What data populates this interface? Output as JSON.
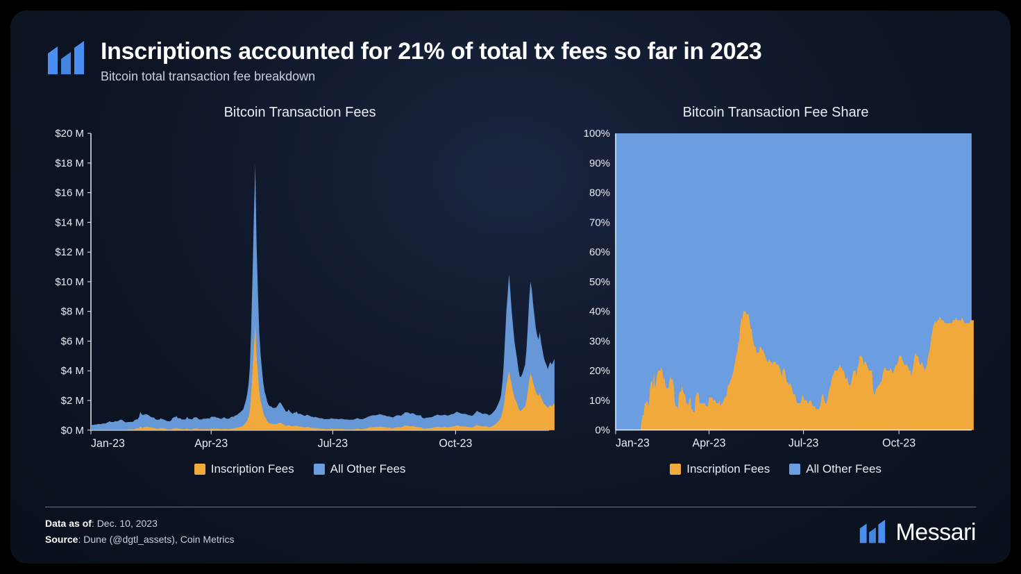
{
  "colors": {
    "inscription": "#f2a93b",
    "other": "#6b9ee0",
    "axis": "#e8ecf4",
    "bg_frame": "#0d1525",
    "logo": "#4a8ff0"
  },
  "header": {
    "title": "Inscriptions accounted for 21% of total tx fees so far in 2023",
    "subtitle": "Bitcoin total transaction fee breakdown"
  },
  "chart1": {
    "title": "Bitcoin Transaction Fees",
    "type": "stacked-area",
    "y": {
      "min": 0,
      "max": 20,
      "step": 2,
      "prefix": "$",
      "suffix": " M"
    },
    "x": {
      "ticks": [
        0,
        90,
        181,
        273
      ],
      "labels": [
        "Jan-23",
        "Apr-23",
        "Jul-23",
        "Oct-23"
      ],
      "max": 343
    },
    "series": {
      "inscription": [
        0,
        0,
        0,
        0,
        0,
        0,
        0,
        0,
        0,
        0,
        0,
        0,
        0,
        0,
        0,
        0,
        0,
        0,
        0,
        0,
        0,
        0,
        0,
        0,
        0,
        0.02,
        0.03,
        0.03,
        0.05,
        0.05,
        0.06,
        0.05,
        0.05,
        0.1,
        0.12,
        0.13,
        0.13,
        0.24,
        0.15,
        0.17,
        0.2,
        0.22,
        0.22,
        0.21,
        0.2,
        0.18,
        0.15,
        0.16,
        0.12,
        0.1,
        0.1,
        0.1,
        0.14,
        0.14,
        0.13,
        0.12,
        0.1,
        0.06,
        0.05,
        0.05,
        0.05,
        0.1,
        0.12,
        0.12,
        0.15,
        0.11,
        0.1,
        0.1,
        0.07,
        0.07,
        0.06,
        0.08,
        0.1,
        0.06,
        0.06,
        0.05,
        0.05,
        0.1,
        0.11,
        0.12,
        0.1,
        0.07,
        0.07,
        0.07,
        0.07,
        0.07,
        0.07,
        0.07,
        0.07,
        0.07,
        0.1,
        0.1,
        0.1,
        0.1,
        0.09,
        0.09,
        0.08,
        0.07,
        0.07,
        0.08,
        0.09,
        0.07,
        0.07,
        0.07,
        0.08,
        0.1,
        0.1,
        0.11,
        0.15,
        0.15,
        0.18,
        0.2,
        0.22,
        0.25,
        0.3,
        0.4,
        0.5,
        0.65,
        0.9,
        1.3,
        2.5,
        4.0,
        5.5,
        7.2,
        5.0,
        3.8,
        2.6,
        2.0,
        1.6,
        1.2,
        0.9,
        0.8,
        0.6,
        0.5,
        0.45,
        0.45,
        0.4,
        0.4,
        0.4,
        0.4,
        0.45,
        0.5,
        0.5,
        0.45,
        0.4,
        0.35,
        0.3,
        0.3,
        0.35,
        0.3,
        0.28,
        0.25,
        0.28,
        0.28,
        0.3,
        0.25,
        0.25,
        0.25,
        0.22,
        0.2,
        0.18,
        0.2,
        0.22,
        0.2,
        0.18,
        0.15,
        0.15,
        0.13,
        0.15,
        0.13,
        0.12,
        0.1,
        0.1,
        0.1,
        0.08,
        0.07,
        0.07,
        0.07,
        0.07,
        0.08,
        0.1,
        0.09,
        0.08,
        0.08,
        0.08,
        0.07,
        0.07,
        0.08,
        0.08,
        0.07,
        0.06,
        0.06,
        0.06,
        0.05,
        0.05,
        0.05,
        0.05,
        0.06,
        0.08,
        0.1,
        0.1,
        0.08,
        0.07,
        0.07,
        0.08,
        0.1,
        0.12,
        0.14,
        0.16,
        0.18,
        0.19,
        0.2,
        0.2,
        0.2,
        0.21,
        0.22,
        0.24,
        0.23,
        0.22,
        0.2,
        0.2,
        0.18,
        0.16,
        0.17,
        0.15,
        0.14,
        0.13,
        0.15,
        0.18,
        0.2,
        0.2,
        0.2,
        0.18,
        0.22,
        0.25,
        0.3,
        0.3,
        0.3,
        0.28,
        0.25,
        0.27,
        0.27,
        0.25,
        0.22,
        0.2,
        0.2,
        0.2,
        0.2,
        0.12,
        0.1,
        0.1,
        0.12,
        0.12,
        0.13,
        0.13,
        0.14,
        0.15,
        0.18,
        0.2,
        0.22,
        0.22,
        0.2,
        0.2,
        0.2,
        0.21,
        0.22,
        0.2,
        0.19,
        0.2,
        0.22,
        0.24,
        0.24,
        0.26,
        0.3,
        0.32,
        0.3,
        0.28,
        0.26,
        0.25,
        0.25,
        0.25,
        0.24,
        0.22,
        0.2,
        0.2,
        0.18,
        0.2,
        0.25,
        0.3,
        0.35,
        0.32,
        0.3,
        0.28,
        0.25,
        0.25,
        0.26,
        0.25,
        0.23,
        0.2,
        0.22,
        0.25,
        0.3,
        0.35,
        0.4,
        0.5,
        0.6,
        0.7,
        0.85,
        1.2,
        1.6,
        2.3,
        3.0,
        3.5,
        4.0,
        3.5,
        3.0,
        2.6,
        2.2,
        2.0,
        1.8,
        1.5,
        1.3,
        1.3,
        1.4,
        1.5,
        1.6,
        2.0,
        2.6,
        3.3,
        3.8,
        3.6,
        3.2,
        2.9,
        2.6,
        2.4,
        2.3,
        2.5,
        2.2,
        2.0,
        1.8,
        1.7,
        1.6,
        1.5,
        1.6,
        1.7,
        1.6,
        1.7,
        1.8
      ],
      "other": [
        0.4,
        0.35,
        0.35,
        0.38,
        0.38,
        0.4,
        0.42,
        0.4,
        0.42,
        0.45,
        0.45,
        0.45,
        0.5,
        0.55,
        0.6,
        0.55,
        0.55,
        0.55,
        0.6,
        0.6,
        0.6,
        0.65,
        0.7,
        0.7,
        0.65,
        0.55,
        0.5,
        0.5,
        0.5,
        0.5,
        0.5,
        0.5,
        0.55,
        0.6,
        0.6,
        0.6,
        0.75,
        1.0,
        0.9,
        0.85,
        0.85,
        0.85,
        0.85,
        0.8,
        0.75,
        0.7,
        0.7,
        0.7,
        0.65,
        0.6,
        0.6,
        0.6,
        0.65,
        0.62,
        0.6,
        0.58,
        0.55,
        0.55,
        0.55,
        0.55,
        0.6,
        0.7,
        0.75,
        0.75,
        0.8,
        0.7,
        0.7,
        0.7,
        0.65,
        0.65,
        0.65,
        0.65,
        0.8,
        0.7,
        0.7,
        0.68,
        0.68,
        0.75,
        0.75,
        0.75,
        0.7,
        0.65,
        0.65,
        0.65,
        0.7,
        0.7,
        0.7,
        0.72,
        0.72,
        0.72,
        0.8,
        0.8,
        0.8,
        0.8,
        0.75,
        0.75,
        0.72,
        0.7,
        0.7,
        0.75,
        0.78,
        0.72,
        0.7,
        0.7,
        0.72,
        0.8,
        0.8,
        0.8,
        0.85,
        0.85,
        0.9,
        0.95,
        1.0,
        1.05,
        1.1,
        1.3,
        1.5,
        1.8,
        2.2,
        3.0,
        4.5,
        6.5,
        9.0,
        10.7,
        7.5,
        5.5,
        4.0,
        3.1,
        2.5,
        2.0,
        1.7,
        1.5,
        1.3,
        1.2,
        1.15,
        1.15,
        1.1,
        1.1,
        1.1,
        1.15,
        1.25,
        1.35,
        1.35,
        1.25,
        1.15,
        1.05,
        0.95,
        0.95,
        1.05,
        0.95,
        0.9,
        0.85,
        0.9,
        0.9,
        0.95,
        0.85,
        0.85,
        0.85,
        0.82,
        0.8,
        0.78,
        0.8,
        0.82,
        0.8,
        0.78,
        0.75,
        0.75,
        0.73,
        0.75,
        0.73,
        0.72,
        0.7,
        0.7,
        0.7,
        0.68,
        0.67,
        0.67,
        0.67,
        0.67,
        0.68,
        0.7,
        0.69,
        0.68,
        0.68,
        0.68,
        0.67,
        0.67,
        0.68,
        0.68,
        0.67,
        0.66,
        0.66,
        0.66,
        0.65,
        0.65,
        0.65,
        0.65,
        0.66,
        0.68,
        0.7,
        0.7,
        0.68,
        0.67,
        0.67,
        0.68,
        0.7,
        0.72,
        0.74,
        0.76,
        0.78,
        0.79,
        0.8,
        0.8,
        0.8,
        0.81,
        0.82,
        0.84,
        0.83,
        0.82,
        0.8,
        0.8,
        0.78,
        0.76,
        0.77,
        0.75,
        0.74,
        0.73,
        0.75,
        0.78,
        0.8,
        0.8,
        0.8,
        0.78,
        0.82,
        0.85,
        0.9,
        0.9,
        0.9,
        0.88,
        0.85,
        0.87,
        0.87,
        0.85,
        0.82,
        0.8,
        0.8,
        0.8,
        0.8,
        0.72,
        0.7,
        0.7,
        0.72,
        0.72,
        0.73,
        0.73,
        0.74,
        0.75,
        0.78,
        0.8,
        0.82,
        0.82,
        0.8,
        0.8,
        0.8,
        0.81,
        0.82,
        0.8,
        0.79,
        0.8,
        0.82,
        0.84,
        0.84,
        0.86,
        0.9,
        0.92,
        0.9,
        0.88,
        0.86,
        0.85,
        0.85,
        0.85,
        0.84,
        0.82,
        0.8,
        0.8,
        0.78,
        0.8,
        0.85,
        0.9,
        0.95,
        0.92,
        0.9,
        0.88,
        0.85,
        0.85,
        0.86,
        0.85,
        0.83,
        0.8,
        0.82,
        0.85,
        0.9,
        0.95,
        1.0,
        1.1,
        1.2,
        1.3,
        1.5,
        2.0,
        2.8,
        3.9,
        5.0,
        5.7,
        6.5,
        5.8,
        5.0,
        4.4,
        3.8,
        3.4,
        3.0,
        2.6,
        2.3,
        2.3,
        2.4,
        2.6,
        2.8,
        3.4,
        4.3,
        5.4,
        6.2,
        5.9,
        5.3,
        4.8,
        4.3,
        4.0,
        3.8,
        4.1,
        3.7,
        3.4,
        3.1,
        2.9,
        2.8,
        2.6,
        2.8,
        2.9,
        2.8,
        2.9,
        3.0
      ]
    }
  },
  "chart2": {
    "title": "Bitcoin Transaction Fee Share",
    "type": "stacked-area-100",
    "y": {
      "min": 0,
      "max": 100,
      "step": 10,
      "suffix": "%"
    },
    "x": {
      "ticks": [
        0,
        90,
        181,
        273
      ],
      "labels": [
        "Jan-23",
        "Apr-23",
        "Jul-23",
        "Oct-23"
      ],
      "max": 343
    },
    "inscription_pct": [
      0,
      0,
      0,
      0,
      0,
      0,
      0,
      0,
      0,
      0,
      0,
      0,
      0,
      0,
      0,
      0,
      0,
      0,
      0,
      0,
      0,
      0,
      0,
      0,
      0,
      3,
      5,
      5,
      9,
      9,
      10,
      9,
      8,
      14,
      16,
      17,
      14,
      19,
      14,
      16,
      19,
      20,
      20,
      20,
      21,
      20,
      17,
      18,
      15,
      14,
      14,
      14,
      17,
      18,
      17,
      17,
      15,
      9,
      8,
      8,
      7,
      12,
      13,
      13,
      15,
      13,
      12,
      12,
      9,
      9,
      8,
      10,
      11,
      7,
      7,
      6,
      6,
      11,
      12,
      13,
      12,
      9,
      9,
      9,
      9,
      9,
      9,
      8,
      8,
      8,
      11,
      11,
      11,
      11,
      10,
      10,
      10,
      9,
      9,
      9,
      10,
      8,
      9,
      9,
      10,
      11,
      11,
      12,
      15,
      15,
      16,
      17,
      18,
      19,
      21,
      23,
      25,
      26,
      29,
      30,
      35,
      38,
      37,
      40,
      40,
      40,
      39,
      39,
      39,
      37,
      34,
      34,
      31,
      29,
      28,
      28,
      26,
      26,
      26,
      28,
      28,
      27,
      27,
      26,
      25,
      24,
      23,
      23,
      24,
      23,
      23,
      22,
      23,
      23,
      23,
      22,
      22,
      22,
      21,
      20,
      18,
      20,
      21,
      20,
      18,
      16,
      16,
      15,
      16,
      15,
      14,
      12,
      12,
      12,
      10,
      9,
      9,
      9,
      9,
      10,
      12,
      11,
      10,
      10,
      10,
      9,
      9,
      10,
      10,
      9,
      8,
      8,
      8,
      7,
      7,
      7,
      7,
      8,
      10,
      12,
      12,
      10,
      9,
      9,
      10,
      12,
      14,
      15,
      17,
      18,
      19,
      20,
      20,
      20,
      20,
      21,
      22,
      21,
      21,
      20,
      20,
      18,
      17,
      18,
      16,
      15,
      15,
      16,
      18,
      20,
      20,
      20,
      18,
      21,
      22,
      25,
      25,
      25,
      24,
      22,
      23,
      23,
      22,
      21,
      20,
      20,
      20,
      20,
      14,
      12,
      12,
      14,
      14,
      15,
      15,
      16,
      16,
      18,
      20,
      21,
      21,
      20,
      20,
      20,
      20,
      21,
      20,
      19,
      20,
      21,
      22,
      22,
      23,
      25,
      25,
      25,
      24,
      23,
      22,
      22,
      22,
      22,
      21,
      20,
      20,
      18,
      20,
      22,
      25,
      26,
      25,
      25,
      24,
      22,
      22,
      23,
      22,
      21,
      20,
      21,
      22,
      25,
      26,
      28,
      31,
      33,
      35,
      36,
      37,
      36,
      37,
      37,
      38,
      38,
      37,
      37,
      37,
      36,
      36,
      36,
      36,
      36,
      36,
      36,
      36,
      37,
      37,
      37,
      38,
      37,
      37,
      37,
      37,
      37,
      38,
      37,
      36,
      36,
      36,
      36,
      36,
      36,
      37,
      37,
      37,
      37
    ]
  },
  "legend": {
    "inscription": "Inscription Fees",
    "other": "All Other Fees"
  },
  "footer": {
    "data_as_of_label": "Data as of",
    "data_as_of": ": Dec. 10, 2023",
    "source_label": "Source",
    "source": ": Dune (@dgtl_assets), Coin Metrics",
    "brand": "Messari"
  }
}
